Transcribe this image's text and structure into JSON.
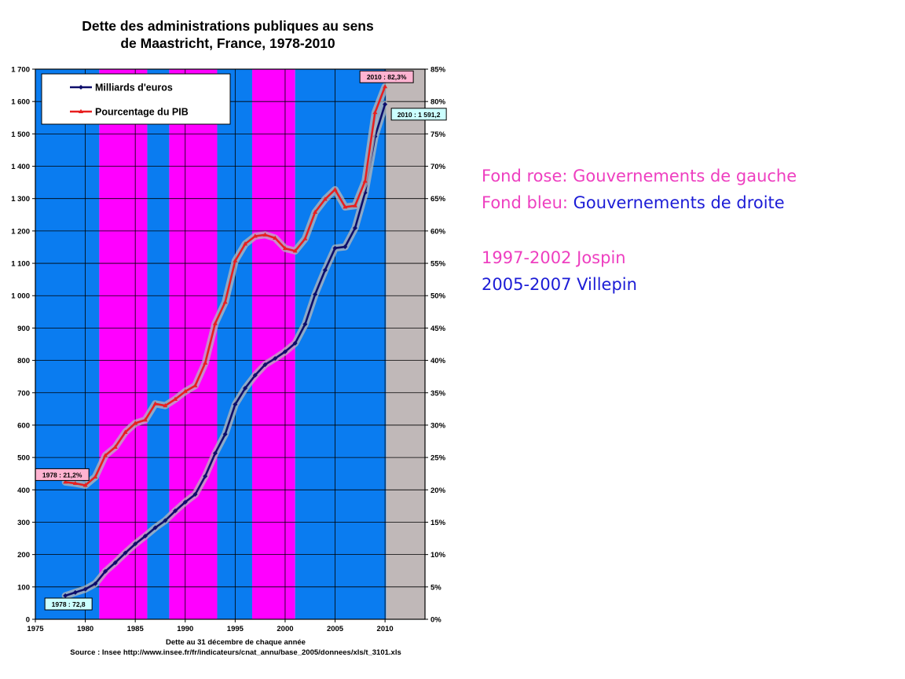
{
  "chart_data": {
    "type": "line",
    "title": "Dette des administrations publiques au sens de Maastricht, France, 1978-2010",
    "title_line1": "Dette des administrations publiques au sens",
    "title_line2": "de Maastricht, France, 1978-2010",
    "xlabel": "Dette au 31 décembre de chaque année",
    "source": "Source : Insee http://www.insee.fr/fr/indicateurs/cnat_annu/base_2005/donnees/xls/t_3101.xls",
    "xlim": [
      1975,
      2014
    ],
    "x_ticks": [
      "1975",
      "1980",
      "1985",
      "1990",
      "1995",
      "2000",
      "2005",
      "2010"
    ],
    "ylim_left": [
      0,
      1700
    ],
    "y_ticks_left": [
      "0",
      "100",
      "200",
      "300",
      "400",
      "500",
      "600",
      "700",
      "800",
      "900",
      "1 000",
      "1 100",
      "1 200",
      "1 300",
      "1 400",
      "1 500",
      "1 600",
      "1 700"
    ],
    "ylim_right": [
      0,
      85
    ],
    "y_ticks_right": [
      "0%",
      "5%",
      "10%",
      "15%",
      "20%",
      "25%",
      "30%",
      "35%",
      "40%",
      "45%",
      "50%",
      "55%",
      "60%",
      "65%",
      "70%",
      "75%",
      "80%",
      "85%"
    ],
    "grid": true,
    "legend_position": "top-left",
    "x": [
      1978,
      1979,
      1980,
      1981,
      1982,
      1983,
      1984,
      1985,
      1986,
      1987,
      1988,
      1989,
      1990,
      1991,
      1992,
      1993,
      1994,
      1995,
      1996,
      1997,
      1998,
      1999,
      2000,
      2001,
      2002,
      2003,
      2004,
      2005,
      2006,
      2007,
      2008,
      2009,
      2010
    ],
    "series": [
      {
        "name": "Milliards d'euros",
        "color": "#0d0d6b",
        "axis": "left",
        "values": [
          72.8,
          83,
          93,
          110,
          148,
          175,
          205,
          233,
          257,
          283,
          305,
          335,
          362,
          386,
          442,
          513,
          572,
          664,
          714,
          754,
          787,
          806,
          827,
          853,
          912,
          1004,
          1079,
          1147,
          1151,
          1209,
          1318,
          1492,
          1591.2
        ]
      },
      {
        "name": "Pourcentage du PIB",
        "color": "#e81f1f",
        "axis": "right",
        "values": [
          21.2,
          21.0,
          20.7,
          22.0,
          25.3,
          26.6,
          28.9,
          30.3,
          30.8,
          33.3,
          33.0,
          34.0,
          35.2,
          36.1,
          39.6,
          45.7,
          49.0,
          55.4,
          58.0,
          59.2,
          59.4,
          58.9,
          57.3,
          56.9,
          58.8,
          62.9,
          64.9,
          66.4,
          63.7,
          63.9,
          67.7,
          78.3,
          82.3
        ]
      }
    ],
    "background_bands": [
      {
        "from": 1975,
        "to": 1981.4,
        "kind": "droite",
        "color": "#0a7cf0"
      },
      {
        "from": 1981.4,
        "to": 1986.2,
        "kind": "gauche",
        "color": "#ff00ff"
      },
      {
        "from": 1986.2,
        "to": 1988.4,
        "kind": "droite",
        "color": "#0a7cf0"
      },
      {
        "from": 1988.4,
        "to": 1993.2,
        "kind": "gauche",
        "color": "#ff00ff"
      },
      {
        "from": 1993.2,
        "to": 1996.7,
        "kind": "droite",
        "color": "#0a7cf0"
      },
      {
        "from": 1996.7,
        "to": 2001.0,
        "kind": "gauche",
        "color": "#ff00ff"
      },
      {
        "from": 2001.0,
        "to": 2010.1,
        "kind": "droite",
        "color": "#0a7cf0"
      },
      {
        "from": 2010.1,
        "to": 2014,
        "kind": "none",
        "color": "#c0b8b8"
      }
    ],
    "annotations": [
      {
        "text": "2010 : 82,3%",
        "x": 2010,
        "axis": "right",
        "y": 82.3,
        "bg": "#ffb3d1"
      },
      {
        "text": "2010 : 1 591,2",
        "x": 2010,
        "axis": "left",
        "y": 1591.2,
        "bg": "#ccffff"
      },
      {
        "text": "1978 : 21,2%",
        "x": 1978,
        "axis": "right",
        "y": 21.2,
        "bg": "#ffb3d1"
      },
      {
        "text": "1978 : 72,8",
        "x": 1978,
        "axis": "left",
        "y": 72.8,
        "bg": "#ccffff"
      }
    ]
  },
  "notes": {
    "line1_label": "Fond rose: ",
    "line1_value": "Gouvernements de gauche",
    "line2_label": "Fond bleu: ",
    "line2_value": "Gouvernements de droite",
    "line3": "1997-2002 Jospin",
    "line4": "2005-2007 Villepin"
  }
}
